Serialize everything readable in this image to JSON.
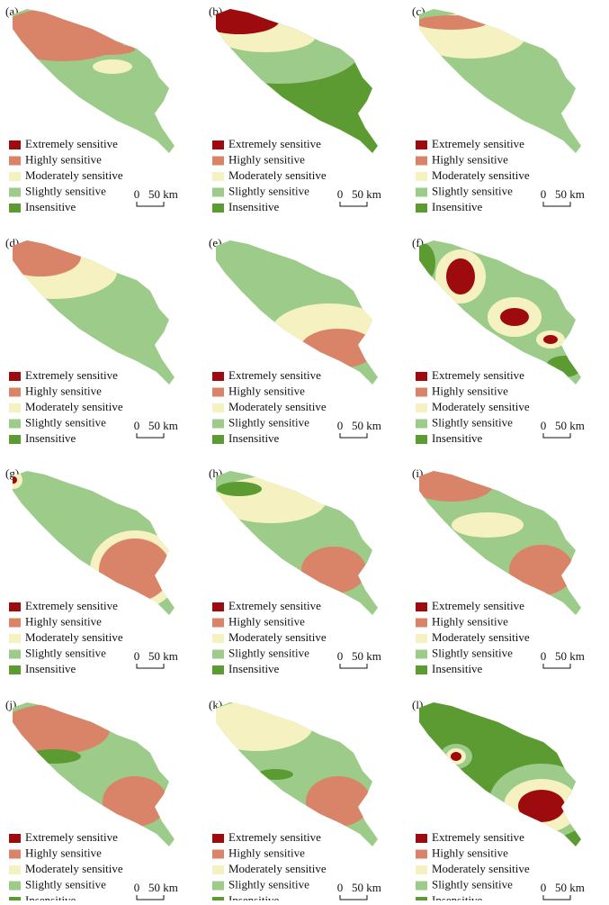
{
  "panels": [
    {
      "label": "(a)"
    },
    {
      "label": "(b)"
    },
    {
      "label": "(c)"
    },
    {
      "label": "(d)"
    },
    {
      "label": "(e)"
    },
    {
      "label": "(f)"
    },
    {
      "label": "(g)"
    },
    {
      "label": "(h)"
    },
    {
      "label": "(i)"
    },
    {
      "label": "(j)"
    },
    {
      "label": "(k)"
    },
    {
      "label": "(l)"
    }
  ],
  "legend": [
    {
      "label": "Extremely sensitive",
      "color": "#9e0b0f"
    },
    {
      "label": "Highly sensitive",
      "color": "#d98468"
    },
    {
      "label": "Moderately sensitive",
      "color": "#f6f1c0"
    },
    {
      "label": "Slightly sensitive",
      "color": "#9ccb8a"
    },
    {
      "label": "Insensitive",
      "color": "#5c9b32"
    }
  ],
  "scale_bar": {
    "zero": "0",
    "length": "50 km"
  }
}
